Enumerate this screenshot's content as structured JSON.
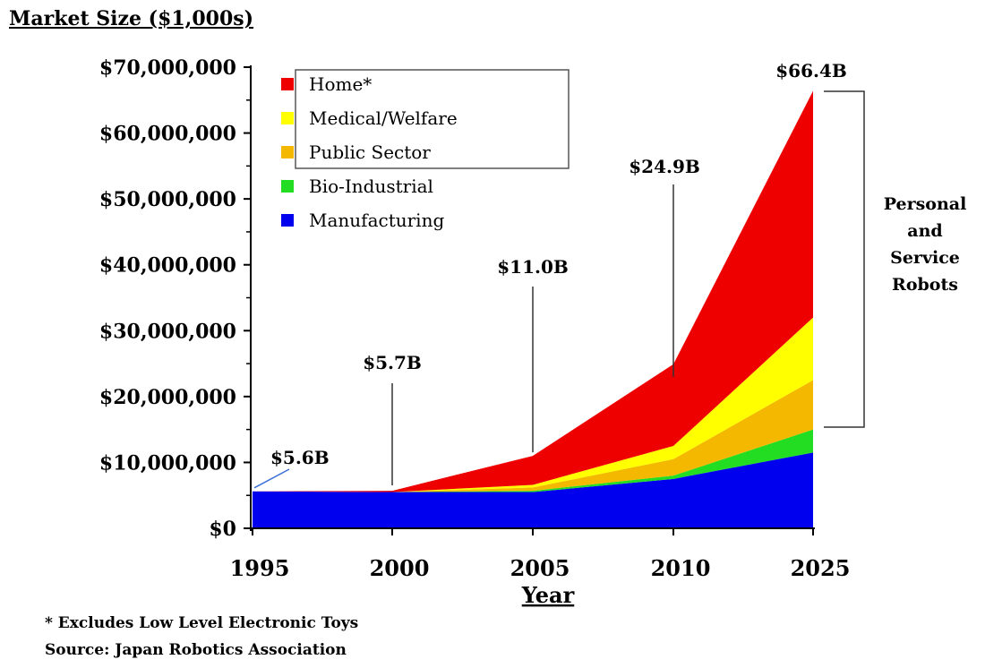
{
  "chart_data": {
    "type": "area",
    "title": "Market Size ($1,000s)",
    "xlabel": "Year",
    "ylabel": "",
    "categories": [
      "1995",
      "2000",
      "2005",
      "2010",
      "2025"
    ],
    "ylim": [
      0,
      70000000
    ],
    "yticks": [
      {
        "value": 0,
        "label": "$0"
      },
      {
        "value": 10000000,
        "label": "$10,000,000"
      },
      {
        "value": 20000000,
        "label": "$20,000,000"
      },
      {
        "value": 30000000,
        "label": "$30,000,000"
      },
      {
        "value": 40000000,
        "label": "$40,000,000"
      },
      {
        "value": 50000000,
        "label": "$50,000,000"
      },
      {
        "value": 60000000,
        "label": "$60,000,000"
      },
      {
        "value": 70000000,
        "label": "$70,000,000"
      }
    ],
    "stacked": true,
    "series": [
      {
        "name": "Manufacturing",
        "color": "#0000ee",
        "values": [
          5600000,
          5500000,
          5500000,
          7500000,
          11500000
        ]
      },
      {
        "name": "Bio-Industrial",
        "color": "#22dd22",
        "values": [
          0,
          0,
          200000,
          500000,
          3500000
        ]
      },
      {
        "name": "Public Sector",
        "color": "#f5b800",
        "values": [
          0,
          0,
          500000,
          2500000,
          7500000
        ]
      },
      {
        "name": "Medical/Welfare",
        "color": "#ffff00",
        "values": [
          0,
          0,
          400000,
          2000000,
          9500000
        ]
      },
      {
        "name": "Home*",
        "color": "#ee0000",
        "values": [
          0,
          200000,
          4400000,
          12400000,
          34400000
        ]
      }
    ],
    "legend_order": [
      "Home*",
      "Medical/Welfare",
      "Public Sector",
      "Bio-Industrial",
      "Manufacturing"
    ],
    "legend_position": "top-left",
    "grid": false,
    "annotations": [
      {
        "category_index": 0,
        "value": 5600000,
        "label": "$5.6B"
      },
      {
        "category_index": 1,
        "value": 5700000,
        "label": "$5.7B"
      },
      {
        "category_index": 2,
        "value": 11000000,
        "label": "$11.0B"
      },
      {
        "category_index": 3,
        "value": 24900000,
        "label": "$24.9B"
      },
      {
        "category_index": 4,
        "value": 66400000,
        "label": "$66.4B"
      }
    ],
    "bracket_label": [
      "Personal",
      "and",
      "Service",
      "Robots"
    ],
    "footnote": "* Excludes Low Level Electronic Toys",
    "source": "Source: Japan Robotics Association"
  }
}
